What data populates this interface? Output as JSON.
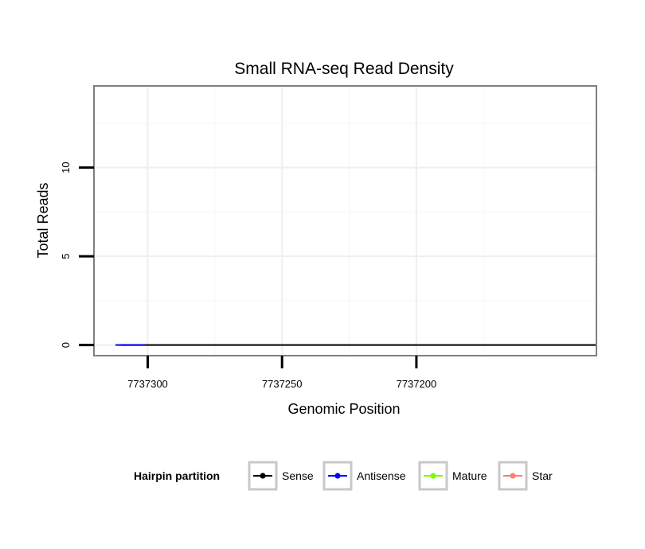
{
  "chart_data": {
    "type": "line",
    "title": "Small RNA-seq Read Density",
    "xlabel": "Genomic Position",
    "ylabel": "Total Reads",
    "x_reversed": true,
    "xlim": [
      7737320,
      7737133
    ],
    "ylim": [
      -0.6,
      14.6
    ],
    "x_ticks": [
      7737300,
      7737250,
      7737200
    ],
    "x_tick_labels": [
      "7737300",
      "7737250",
      "7737200"
    ],
    "y_ticks": [
      0,
      5,
      10
    ],
    "y_tick_labels": [
      "0",
      "5",
      "10"
    ],
    "grid": true,
    "legend_position": "bottom",
    "legend_title": "Hairpin partition",
    "series": [
      {
        "name": "Sense",
        "color": "#000000",
        "points": [
          [
            7737310,
            0
          ],
          [
            7737300,
            0
          ],
          [
            7737290,
            0
          ],
          [
            7737280,
            0
          ],
          [
            7737270,
            0
          ],
          [
            7737260,
            0
          ],
          [
            7737250,
            0
          ],
          [
            7737240,
            0
          ],
          [
            7737230,
            0
          ],
          [
            7737220,
            0
          ],
          [
            7737210,
            0
          ],
          [
            7737200,
            0
          ],
          [
            7737190,
            0
          ],
          [
            7737180,
            0
          ],
          [
            7737170,
            0
          ],
          [
            7737160,
            0
          ],
          [
            7737150,
            0
          ],
          [
            7737141,
            0
          ],
          [
            7737140,
            0
          ],
          [
            7737133,
            0
          ],
          [
            7737137,
            0
          ],
          [
            7737138,
            0
          ]
        ]
      },
      {
        "name": "Antisense",
        "color": "#0000ff",
        "points": [
          [
            7737312,
            0
          ],
          [
            7737302,
            0
          ],
          [
            7737301,
            0
          ]
        ]
      },
      {
        "name": "Mature",
        "color": "#7cfc00",
        "points": []
      },
      {
        "name": "Star",
        "color": "#fa8072",
        "points": []
      }
    ]
  },
  "legend": {
    "title": "Hairpin partition",
    "items": [
      {
        "label": "Sense",
        "color": "#000000"
      },
      {
        "label": "Antisense",
        "color": "#0000ff"
      },
      {
        "label": "Mature",
        "color": "#7cfc00"
      },
      {
        "label": "Star",
        "color": "#fa8072"
      }
    ]
  }
}
